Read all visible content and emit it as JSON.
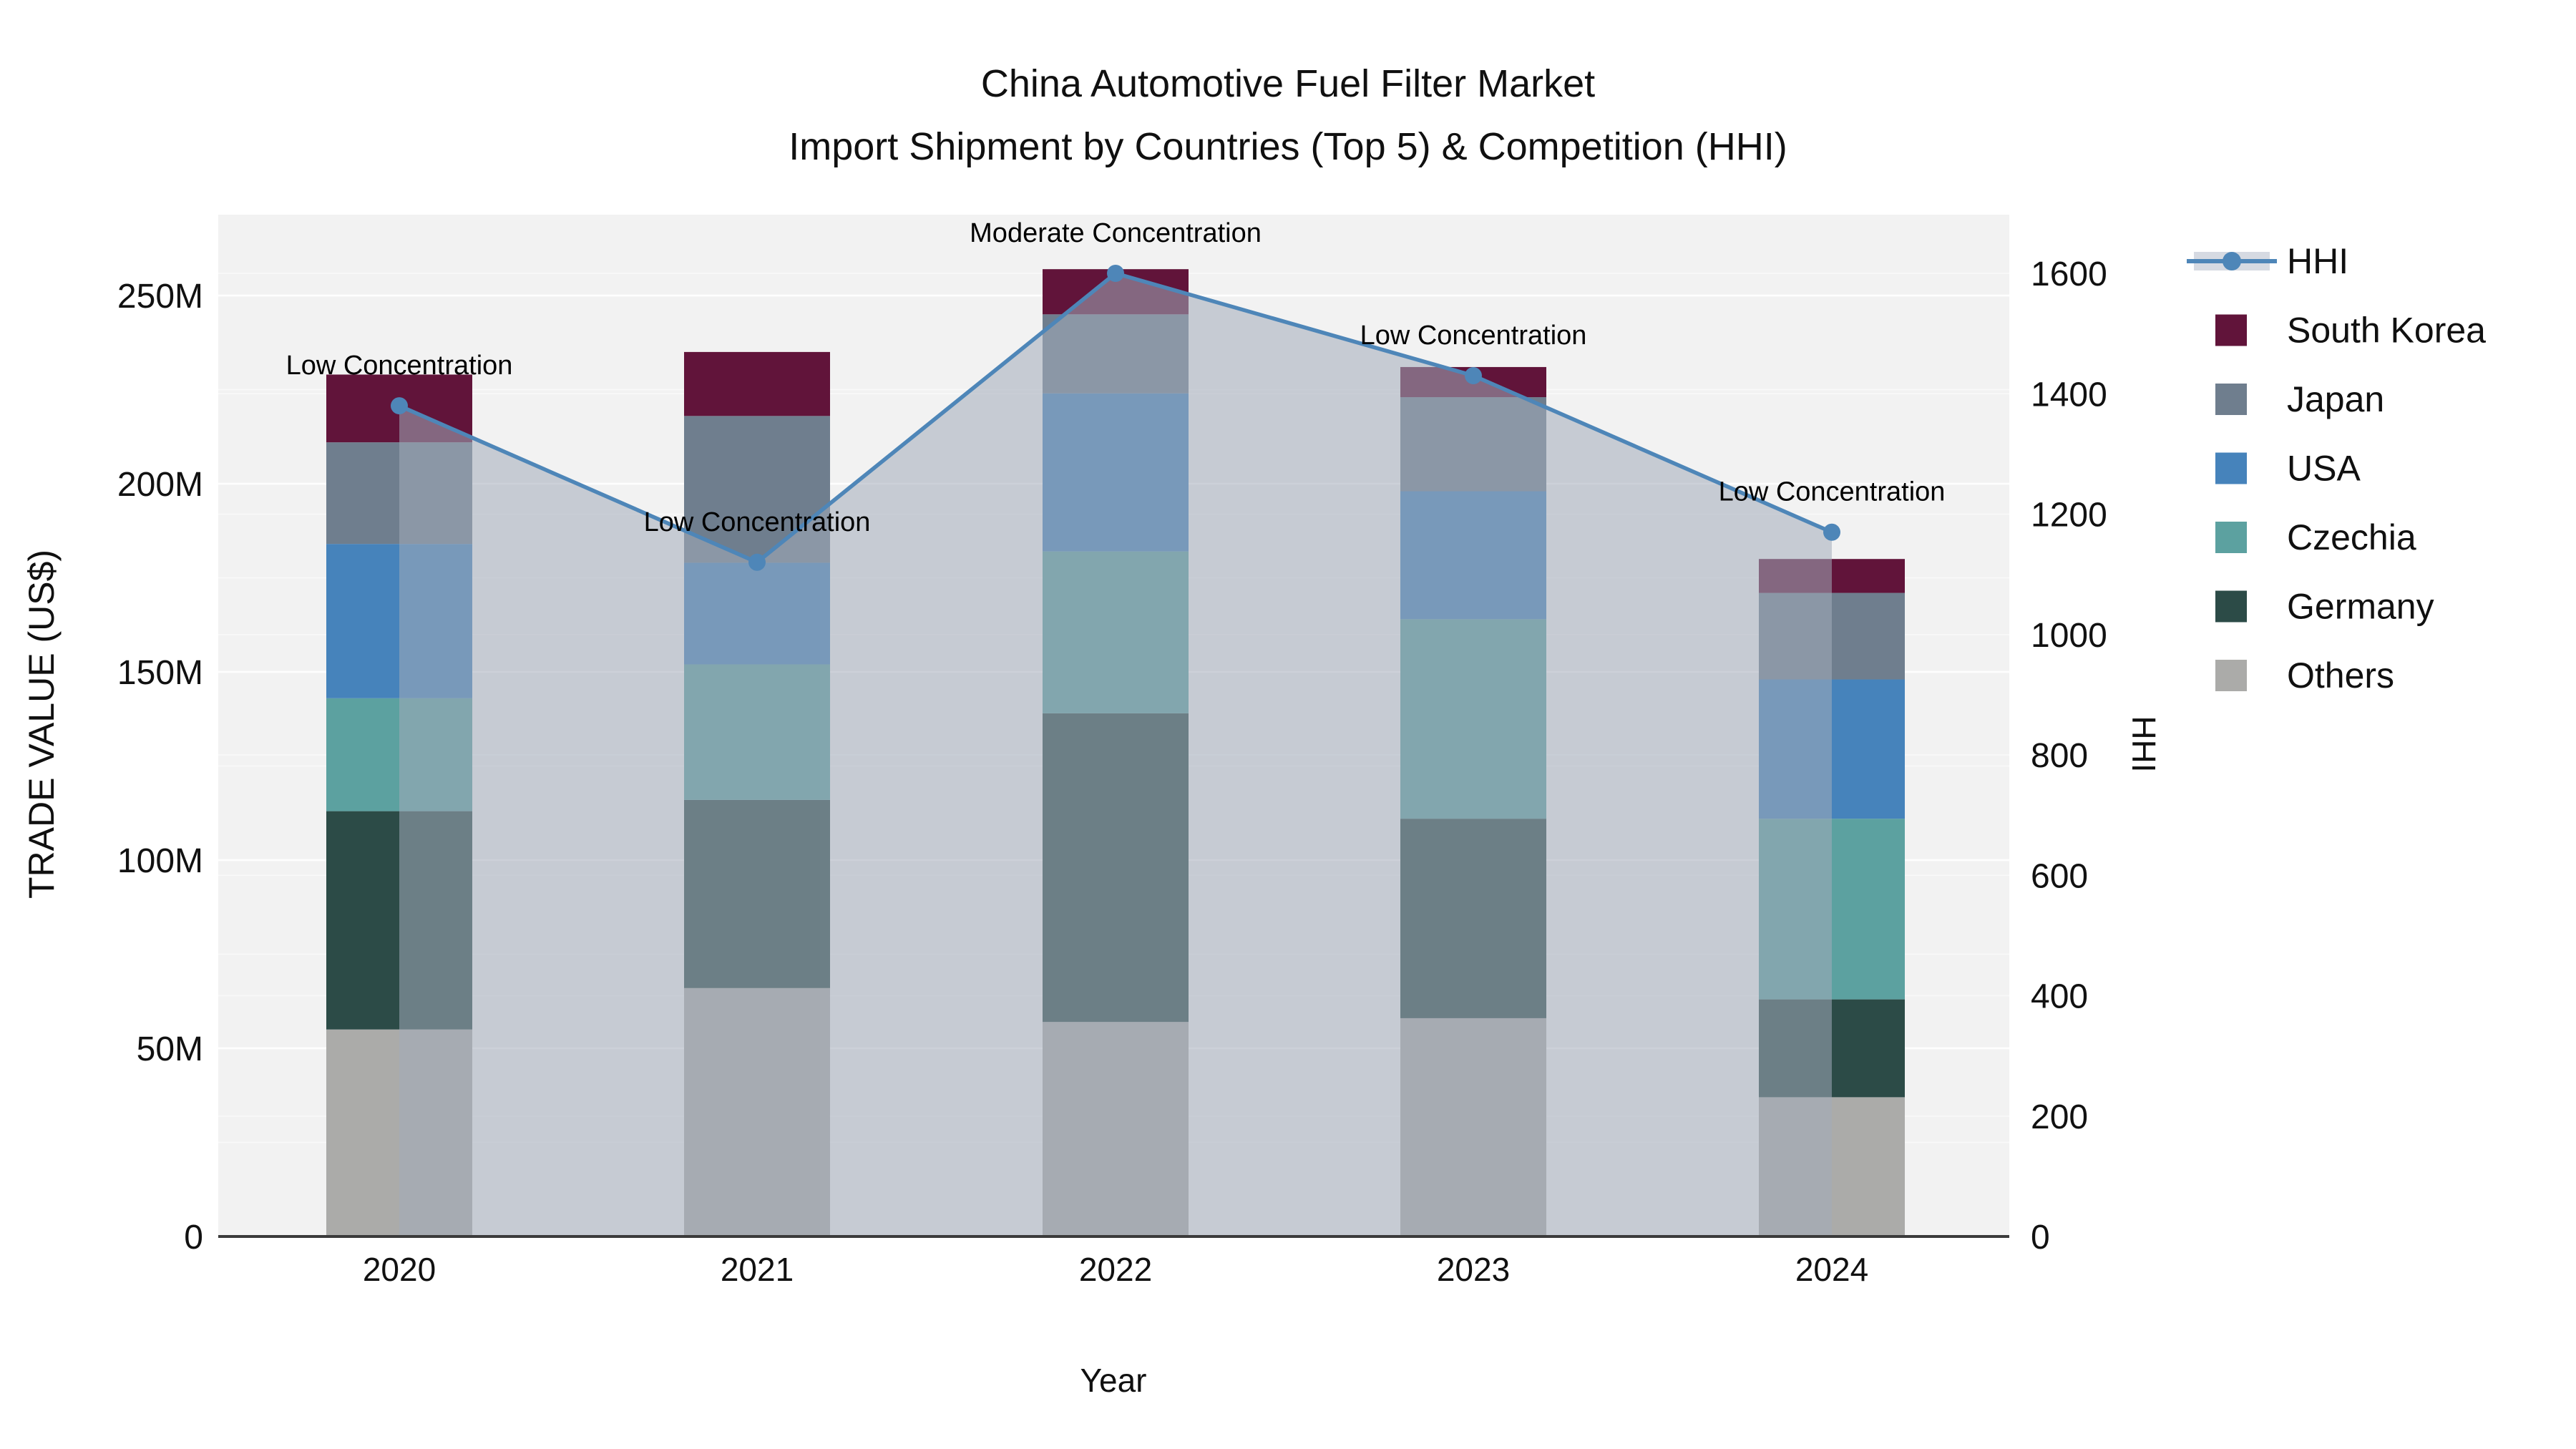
{
  "title": {
    "line1": "China Automotive Fuel Filter Market",
    "line2": "Import Shipment by Countries (Top 5) & Competition (HHI)"
  },
  "axes": {
    "x_title": "Year",
    "y_left_title": "TRADE VALUE (US$)",
    "y_right_title": "HHI"
  },
  "legend": {
    "items": [
      {
        "label": "HHI",
        "type": "line",
        "color": "#4E86B8",
        "band_color": "#D6DAE2"
      },
      {
        "label": "South Korea",
        "type": "swatch",
        "color": "#61143A"
      },
      {
        "label": "Japan",
        "type": "swatch",
        "color": "#6F7E8E"
      },
      {
        "label": "USA",
        "type": "swatch",
        "color": "#4683BB"
      },
      {
        "label": "Czechia",
        "type": "swatch",
        "color": "#5CA1A0"
      },
      {
        "label": "Germany",
        "type": "swatch",
        "color": "#2C4B47"
      },
      {
        "label": "Others",
        "type": "swatch",
        "color": "#ABABA9"
      }
    ]
  },
  "chart_data": {
    "type": "bar",
    "subtype": "stacked-bars-with-overlaid-line",
    "title": "China Automotive Fuel Filter Market — Import Shipment by Countries (Top 5) & Competition (HHI)",
    "xlabel": "Year",
    "ylabel_left": "TRADE VALUE (US$)",
    "ylabel_right": "HHI",
    "categories": [
      "2020",
      "2021",
      "2022",
      "2023",
      "2024"
    ],
    "values_unit": "millions of US$",
    "stack_order": "bottom_to_top",
    "series": [
      {
        "name": "Others",
        "color": "#ABABA9",
        "values": [
          55,
          66,
          57,
          58,
          37
        ]
      },
      {
        "name": "Germany",
        "color": "#2C4B47",
        "values": [
          58,
          50,
          82,
          53,
          26
        ]
      },
      {
        "name": "Czechia",
        "color": "#5CA1A0",
        "values": [
          30,
          36,
          43,
          53,
          48
        ]
      },
      {
        "name": "USA",
        "color": "#4683BB",
        "values": [
          41,
          27,
          42,
          34,
          37
        ]
      },
      {
        "name": "Japan",
        "color": "#6F7E8E",
        "values": [
          27,
          39,
          21,
          25,
          23
        ]
      },
      {
        "name": "South Korea",
        "color": "#61143A",
        "values": [
          18,
          17,
          12,
          8,
          9
        ]
      }
    ],
    "bar_totals": [
      229,
      235,
      257,
      231,
      180
    ],
    "line_series": {
      "name": "HHI",
      "color": "#4E86B8",
      "area_color": "rgba(163,172,186,0.55)",
      "values": [
        1380,
        1120,
        1600,
        1430,
        1170
      ]
    },
    "annotations": [
      {
        "category": "2020",
        "text": "Low Concentration"
      },
      {
        "category": "2021",
        "text": "Low Concentration"
      },
      {
        "category": "2022",
        "text": "Moderate Concentration"
      },
      {
        "category": "2023",
        "text": "Low Concentration"
      },
      {
        "category": "2024",
        "text": "Low Concentration"
      }
    ],
    "y_left_ticks": [
      "0",
      "50M",
      "100M",
      "150M",
      "200M",
      "250M"
    ],
    "y_left_tick_values": [
      0,
      50,
      100,
      150,
      200,
      250
    ],
    "y_left_range": [
      0,
      250
    ],
    "y_right_ticks": [
      "0",
      "200",
      "400",
      "600",
      "800",
      "1000",
      "1200",
      "1400",
      "1600"
    ],
    "y_right_tick_values": [
      0,
      200,
      400,
      600,
      800,
      1000,
      1200,
      1400,
      1600
    ],
    "y_right_range": [
      0,
      1600
    ],
    "grid": "horizontal",
    "legend_position": "right"
  }
}
